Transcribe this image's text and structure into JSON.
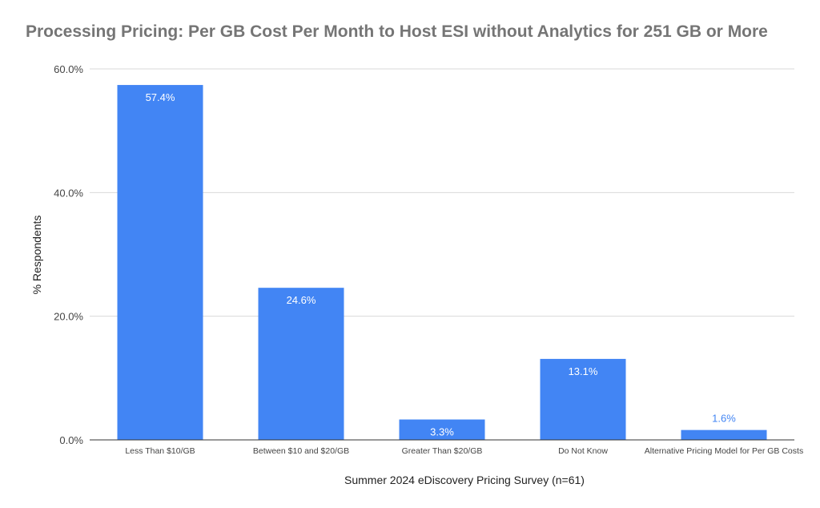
{
  "chart_data": {
    "type": "bar",
    "title": "Processing Pricing: Per GB Cost Per Month to Host ESI without Analytics for 251 GB or More",
    "xlabel": "Summer 2024 eDiscovery Pricing Survey (n=61)",
    "ylabel": "% Respondents",
    "categories": [
      "Less Than $10/GB",
      "Between $10 and $20/GB",
      "Greater Than $20/GB",
      "Do Not Know",
      "Alternative Pricing Model for Per GB Costs"
    ],
    "values": [
      57.4,
      24.6,
      3.3,
      13.1,
      1.6
    ],
    "data_labels": [
      "57.4%",
      "24.6%",
      "3.3%",
      "13.1%",
      "1.6%"
    ],
    "ylim": [
      0,
      60
    ],
    "yticks": [
      0,
      20,
      40,
      60
    ],
    "ytick_labels": [
      "0.0%",
      "20.0%",
      "40.0%",
      "60.0%"
    ],
    "grid": true,
    "legend": "none",
    "colors": {
      "bar": "#4285f4",
      "grid": "#d9d9d9",
      "axis": "#333333",
      "label_inside": "#ffffff",
      "label_outside": "#4285f4"
    }
  }
}
